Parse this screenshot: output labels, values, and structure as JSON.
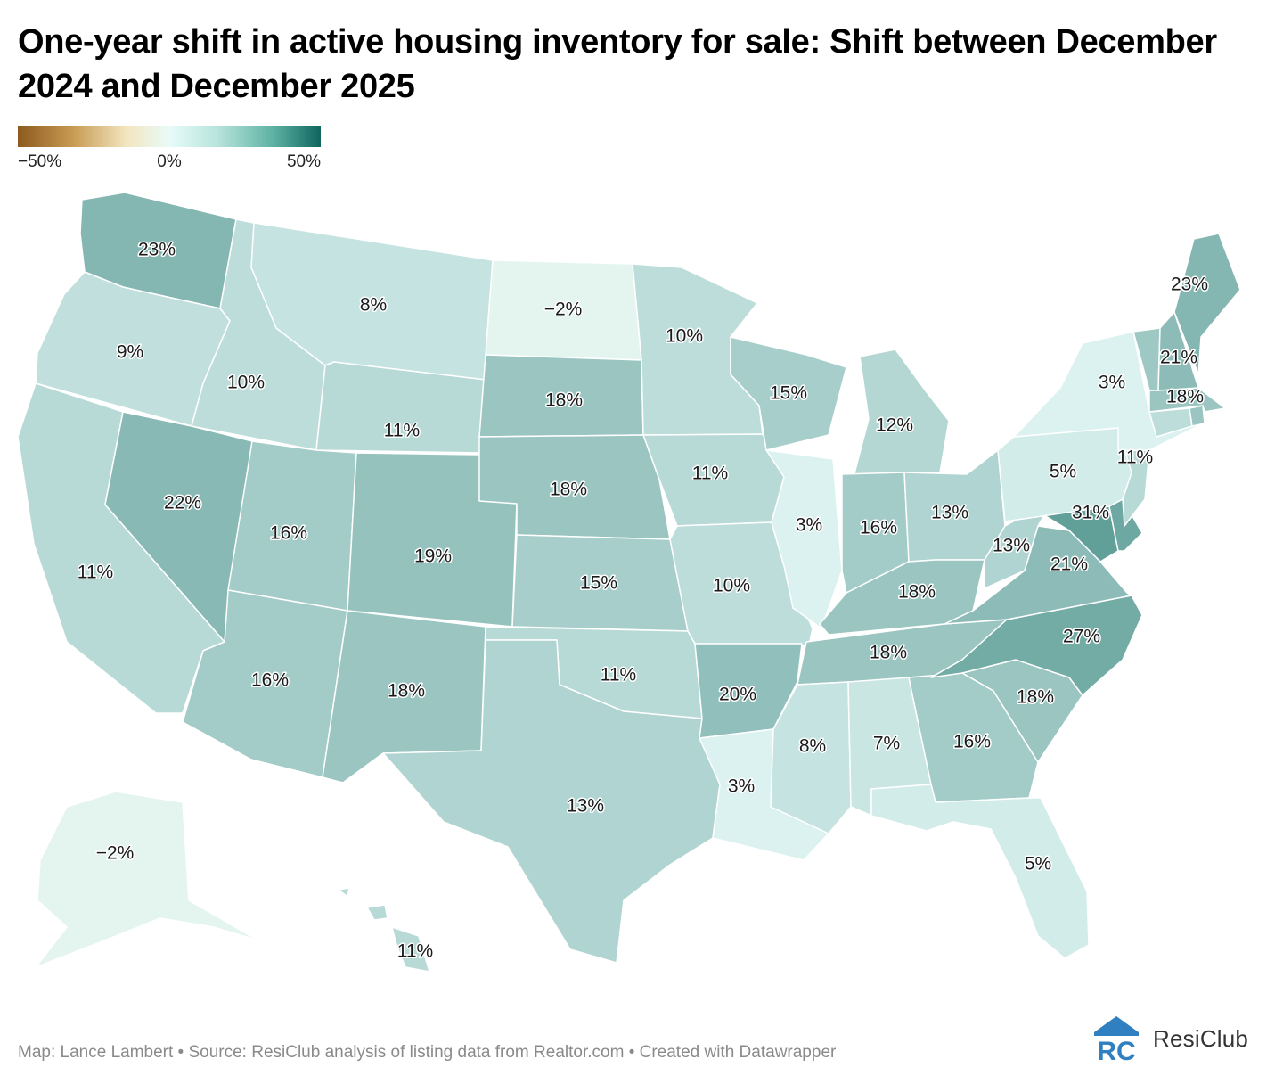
{
  "title": "One-year shift in active housing inventory for sale: Shift between December 2024 and December 2025",
  "legend": {
    "min_label": "−50%",
    "mid_label": "0%",
    "max_label": "50%",
    "min": -50,
    "max": 50
  },
  "colors": {
    "negative": "#8c5a1e",
    "zero": "#e8fbf9",
    "positive": "#0f665e",
    "border": "#ffffff"
  },
  "states": [
    {
      "code": "WA",
      "name": "Washington",
      "label": "23%",
      "value": 23
    },
    {
      "code": "OR",
      "name": "Oregon",
      "label": "9%",
      "value": 9
    },
    {
      "code": "CA",
      "name": "California",
      "label": "11%",
      "value": 11
    },
    {
      "code": "ID",
      "name": "Idaho",
      "label": "10%",
      "value": 10
    },
    {
      "code": "NV",
      "name": "Nevada",
      "label": "22%",
      "value": 22
    },
    {
      "code": "MT",
      "name": "Montana",
      "label": "8%",
      "value": 8
    },
    {
      "code": "WY",
      "name": "Wyoming",
      "label": "11%",
      "value": 11
    },
    {
      "code": "UT",
      "name": "Utah",
      "label": "16%",
      "value": 16
    },
    {
      "code": "AZ",
      "name": "Arizona",
      "label": "16%",
      "value": 16
    },
    {
      "code": "CO",
      "name": "Colorado",
      "label": "19%",
      "value": 19
    },
    {
      "code": "NM",
      "name": "New Mexico",
      "label": "18%",
      "value": 18
    },
    {
      "code": "ND",
      "name": "North Dakota",
      "label": "−2%",
      "value": -2
    },
    {
      "code": "SD",
      "name": "South Dakota",
      "label": "18%",
      "value": 18
    },
    {
      "code": "NE",
      "name": "Nebraska",
      "label": "18%",
      "value": 18
    },
    {
      "code": "KS",
      "name": "Kansas",
      "label": "15%",
      "value": 15
    },
    {
      "code": "OK",
      "name": "Oklahoma",
      "label": "11%",
      "value": 11
    },
    {
      "code": "TX",
      "name": "Texas",
      "label": "13%",
      "value": 13
    },
    {
      "code": "MN",
      "name": "Minnesota",
      "label": "10%",
      "value": 10
    },
    {
      "code": "IA",
      "name": "Iowa",
      "label": "11%",
      "value": 11
    },
    {
      "code": "MO",
      "name": "Missouri",
      "label": "10%",
      "value": 10
    },
    {
      "code": "AR",
      "name": "Arkansas",
      "label": "20%",
      "value": 20
    },
    {
      "code": "LA",
      "name": "Louisiana",
      "label": "3%",
      "value": 3
    },
    {
      "code": "WI",
      "name": "Wisconsin",
      "label": "15%",
      "value": 15
    },
    {
      "code": "IL",
      "name": "Illinois",
      "label": "3%",
      "value": 3
    },
    {
      "code": "MI",
      "name": "Michigan",
      "label": "12%",
      "value": 12
    },
    {
      "code": "IN",
      "name": "Indiana",
      "label": "16%",
      "value": 16
    },
    {
      "code": "OH",
      "name": "Ohio",
      "label": "13%",
      "value": 13
    },
    {
      "code": "KY",
      "name": "Kentucky",
      "label": "18%",
      "value": 18
    },
    {
      "code": "TN",
      "name": "Tennessee",
      "label": "18%",
      "value": 18
    },
    {
      "code": "MS",
      "name": "Mississippi",
      "label": "8%",
      "value": 8
    },
    {
      "code": "AL",
      "name": "Alabama",
      "label": "7%",
      "value": 7
    },
    {
      "code": "GA",
      "name": "Georgia",
      "label": "16%",
      "value": 16
    },
    {
      "code": "FL",
      "name": "Florida",
      "label": "5%",
      "value": 5
    },
    {
      "code": "SC",
      "name": "South Carolina",
      "label": "18%",
      "value": 18
    },
    {
      "code": "NC",
      "name": "North Carolina",
      "label": "27%",
      "value": 27
    },
    {
      "code": "VA",
      "name": "Virginia",
      "label": "21%",
      "value": 21
    },
    {
      "code": "WV",
      "name": "West Virginia",
      "label": "13%",
      "value": 13
    },
    {
      "code": "MD",
      "name": "Maryland",
      "label": "31%",
      "value": 31
    },
    {
      "code": "DE",
      "name": "Delaware",
      "label": "",
      "value": 28
    },
    {
      "code": "NJ",
      "name": "New Jersey",
      "label": "11%",
      "value": 11
    },
    {
      "code": "PA",
      "name": "Pennsylvania",
      "label": "5%",
      "value": 5
    },
    {
      "code": "NY",
      "name": "New York",
      "label": "3%",
      "value": 3
    },
    {
      "code": "CT",
      "name": "Connecticut",
      "label": "",
      "value": 10
    },
    {
      "code": "RI",
      "name": "Rhode Island",
      "label": "",
      "value": 18
    },
    {
      "code": "MA",
      "name": "Massachusetts",
      "label": "18%",
      "value": 18
    },
    {
      "code": "VT",
      "name": "Vermont",
      "label": "",
      "value": 17
    },
    {
      "code": "NH",
      "name": "New Hampshire",
      "label": "21%",
      "value": 21
    },
    {
      "code": "ME",
      "name": "Maine",
      "label": "23%",
      "value": 23
    },
    {
      "code": "AK",
      "name": "Alaska",
      "label": "−2%",
      "value": -2
    },
    {
      "code": "HI",
      "name": "Hawaii",
      "label": "11%",
      "value": 11
    }
  ],
  "footer": "Map: Lance Lambert • Source: ResiClub analysis of listing data from Realtor.com • Created with Datawrapper",
  "brand": {
    "name": "ResiClub",
    "mark_text": "RC",
    "color": "#2f7fc1"
  }
}
